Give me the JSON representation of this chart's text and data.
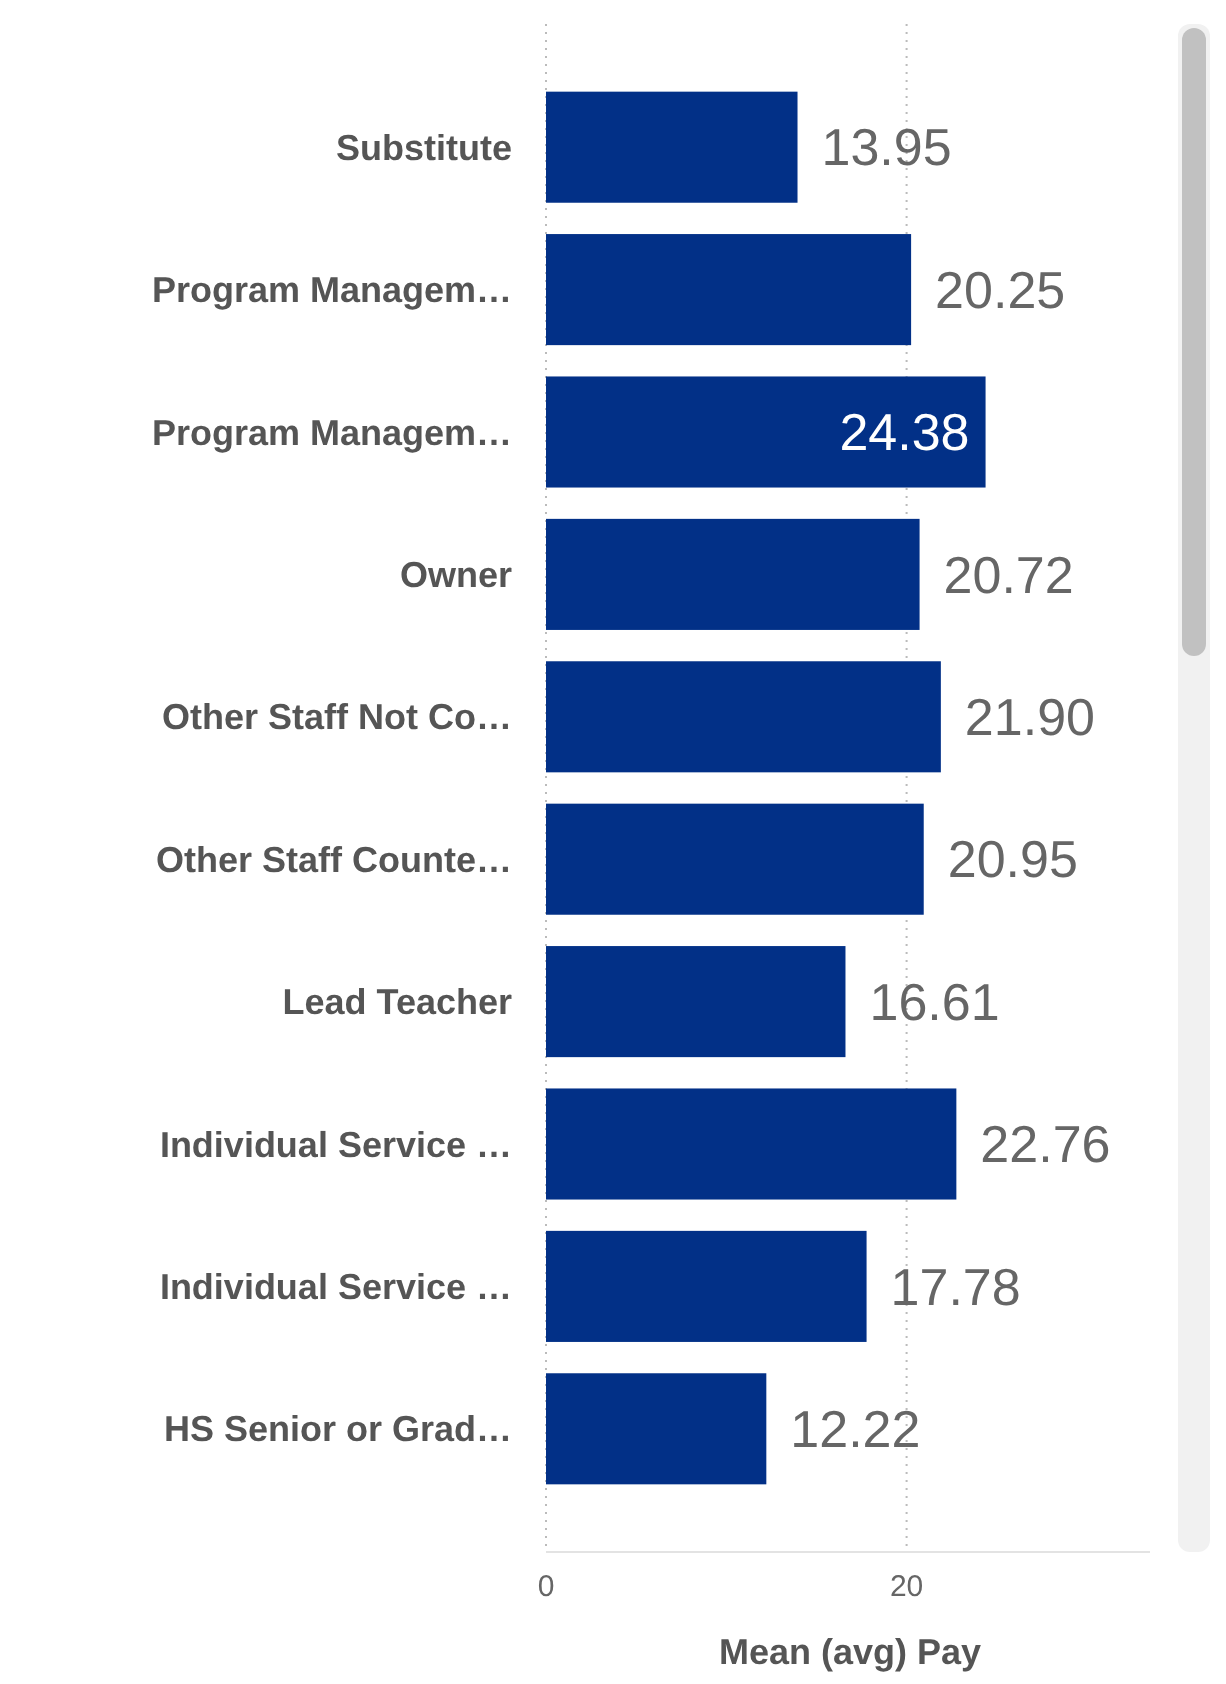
{
  "chart_data": {
    "type": "bar",
    "orientation": "horizontal",
    "xlabel": "Mean (avg) Pay",
    "categories": [
      "Substitute",
      "Program Managem…",
      "Program Managem…",
      "Owner",
      "Other Staff Not Co…",
      "Other Staff Counte…",
      "Lead Teacher",
      "Individual Service …",
      "Individual Service …",
      "HS Senior or Grad…"
    ],
    "values": [
      13.95,
      20.25,
      24.38,
      20.72,
      21.9,
      20.95,
      16.61,
      22.76,
      17.78,
      12.22
    ],
    "value_labels": [
      "13.95",
      "20.25",
      "24.38",
      "20.72",
      "21.90",
      "20.95",
      "16.61",
      "22.76",
      "17.78",
      "12.22"
    ],
    "color": "#023087",
    "xlim": [
      0,
      33.5
    ],
    "xticks": [
      0,
      20
    ],
    "grid": "x"
  }
}
